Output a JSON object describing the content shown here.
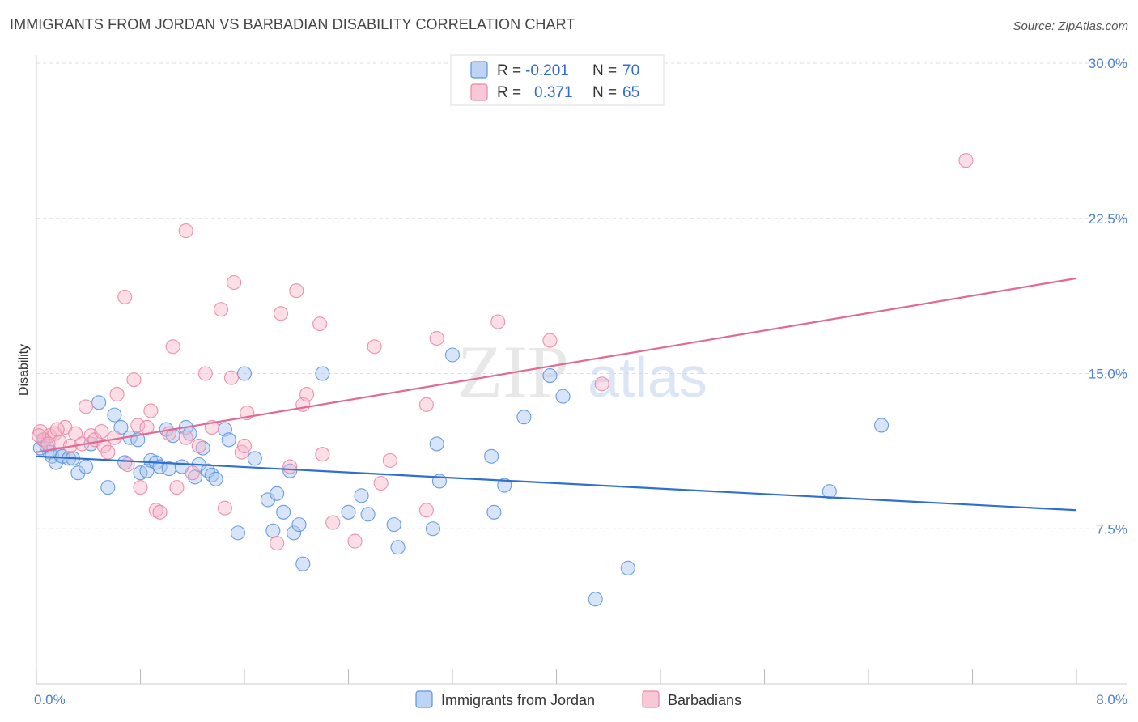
{
  "title": "IMMIGRANTS FROM JORDAN VS BARBADIAN DISABILITY CORRELATION CHART",
  "source": "Source: ZipAtlas.com",
  "watermark": {
    "zip": "ZIP",
    "atlas": "atlas"
  },
  "chart_data": {
    "type": "scatter",
    "ylabel": "Disability",
    "xlim": [
      0.0,
      8.0
    ],
    "ylim": [
      0.0,
      30.0
    ],
    "x_tick_labels": {
      "left": "0.0%",
      "right": "8.0%"
    },
    "y_ticks": [
      {
        "value": 7.5,
        "label": "7.5%"
      },
      {
        "value": 15.0,
        "label": "15.0%"
      },
      {
        "value": 22.5,
        "label": "22.5%"
      },
      {
        "value": 30.0,
        "label": "30.0%"
      }
    ],
    "grid": "horizontal dashed",
    "legend_top": {
      "rows": [
        {
          "r_label": "R =",
          "r_value": "-0.201",
          "n_label": "N =",
          "n_value": "70",
          "color": "#a8c6f0"
        },
        {
          "r_label": "R =",
          "r_value": " 0.371",
          "n_label": "N =",
          "n_value": "65",
          "color": "#f7b6c8"
        }
      ]
    },
    "series": [
      {
        "name": "Immigrants from Jordan",
        "color": "#5b93e0",
        "fill": "#a8c6f0",
        "trend": {
          "x": [
            0.0,
            8.0
          ],
          "y": [
            11.0,
            8.4
          ],
          "color": "#2f6fd0"
        },
        "points": [
          [
            0.05,
            11.8
          ],
          [
            0.08,
            11.5
          ],
          [
            0.1,
            11.2
          ],
          [
            0.12,
            11.0
          ],
          [
            0.15,
            10.7
          ],
          [
            0.18,
            11.1
          ],
          [
            0.2,
            11.0
          ],
          [
            0.25,
            10.9
          ],
          [
            0.28,
            10.9
          ],
          [
            0.32,
            10.2
          ],
          [
            0.38,
            10.5
          ],
          [
            0.42,
            11.6
          ],
          [
            0.48,
            13.6
          ],
          [
            0.55,
            9.5
          ],
          [
            0.6,
            13.0
          ],
          [
            0.65,
            12.4
          ],
          [
            0.68,
            10.7
          ],
          [
            0.72,
            11.9
          ],
          [
            0.78,
            11.8
          ],
          [
            0.8,
            10.2
          ],
          [
            0.85,
            10.3
          ],
          [
            0.88,
            10.8
          ],
          [
            0.92,
            10.7
          ],
          [
            0.95,
            10.5
          ],
          [
            1.0,
            12.3
          ],
          [
            1.02,
            10.4
          ],
          [
            1.05,
            12.0
          ],
          [
            1.12,
            10.5
          ],
          [
            1.15,
            12.4
          ],
          [
            1.18,
            12.1
          ],
          [
            1.22,
            10.0
          ],
          [
            1.25,
            10.6
          ],
          [
            1.28,
            11.4
          ],
          [
            1.32,
            10.3
          ],
          [
            1.35,
            10.1
          ],
          [
            1.38,
            9.9
          ],
          [
            1.45,
            12.3
          ],
          [
            1.48,
            11.8
          ],
          [
            1.55,
            7.3
          ],
          [
            1.6,
            15.0
          ],
          [
            1.68,
            10.9
          ],
          [
            1.78,
            8.9
          ],
          [
            1.82,
            7.4
          ],
          [
            1.85,
            9.2
          ],
          [
            1.9,
            8.3
          ],
          [
            1.95,
            10.3
          ],
          [
            1.98,
            7.3
          ],
          [
            2.02,
            7.7
          ],
          [
            2.05,
            5.8
          ],
          [
            2.2,
            15.0
          ],
          [
            2.4,
            8.3
          ],
          [
            2.5,
            9.1
          ],
          [
            2.55,
            8.2
          ],
          [
            2.75,
            7.7
          ],
          [
            2.78,
            6.6
          ],
          [
            3.05,
            7.5
          ],
          [
            3.08,
            11.6
          ],
          [
            3.1,
            9.8
          ],
          [
            3.2,
            15.9
          ],
          [
            3.5,
            11.0
          ],
          [
            3.52,
            8.3
          ],
          [
            3.6,
            9.6
          ],
          [
            3.75,
            12.9
          ],
          [
            3.95,
            14.9
          ],
          [
            4.05,
            13.9
          ],
          [
            4.3,
            4.1
          ],
          [
            4.55,
            5.6
          ],
          [
            6.1,
            9.3
          ],
          [
            6.5,
            12.5
          ],
          [
            0.03,
            11.4
          ]
        ]
      },
      {
        "name": "Barbadians",
        "color": "#e986a6",
        "fill": "#f7b6c8",
        "trend": {
          "x": [
            0.0,
            8.0
          ],
          "y": [
            11.2,
            19.6
          ],
          "color": "#e06a93"
        },
        "points": [
          [
            0.03,
            12.2
          ],
          [
            0.06,
            11.8
          ],
          [
            0.1,
            12.0
          ],
          [
            0.14,
            12.1
          ],
          [
            0.18,
            11.7
          ],
          [
            0.22,
            12.4
          ],
          [
            0.26,
            11.5
          ],
          [
            0.3,
            12.1
          ],
          [
            0.35,
            11.6
          ],
          [
            0.38,
            13.4
          ],
          [
            0.42,
            12.0
          ],
          [
            0.45,
            11.8
          ],
          [
            0.5,
            12.2
          ],
          [
            0.52,
            11.5
          ],
          [
            0.55,
            11.2
          ],
          [
            0.6,
            11.9
          ],
          [
            0.62,
            14.0
          ],
          [
            0.68,
            18.7
          ],
          [
            0.7,
            10.6
          ],
          [
            0.75,
            14.7
          ],
          [
            0.78,
            12.5
          ],
          [
            0.8,
            9.5
          ],
          [
            0.85,
            12.4
          ],
          [
            0.88,
            13.2
          ],
          [
            0.92,
            8.4
          ],
          [
            0.95,
            8.3
          ],
          [
            1.02,
            12.1
          ],
          [
            1.05,
            16.3
          ],
          [
            1.08,
            9.5
          ],
          [
            1.15,
            11.9
          ],
          [
            1.15,
            21.9
          ],
          [
            1.2,
            10.2
          ],
          [
            1.25,
            11.5
          ],
          [
            1.3,
            15.0
          ],
          [
            1.35,
            12.4
          ],
          [
            1.42,
            18.1
          ],
          [
            1.45,
            8.5
          ],
          [
            1.5,
            14.8
          ],
          [
            1.52,
            19.4
          ],
          [
            1.58,
            11.2
          ],
          [
            1.6,
            11.5
          ],
          [
            1.62,
            13.1
          ],
          [
            1.85,
            6.8
          ],
          [
            1.88,
            17.9
          ],
          [
            1.95,
            10.5
          ],
          [
            2.0,
            19.0
          ],
          [
            2.05,
            13.5
          ],
          [
            2.08,
            14.0
          ],
          [
            2.18,
            17.4
          ],
          [
            2.2,
            11.1
          ],
          [
            2.28,
            7.8
          ],
          [
            2.45,
            6.9
          ],
          [
            2.6,
            16.3
          ],
          [
            2.65,
            9.7
          ],
          [
            2.72,
            10.8
          ],
          [
            3.0,
            13.5
          ],
          [
            3.0,
            8.4
          ],
          [
            3.08,
            16.7
          ],
          [
            3.55,
            17.5
          ],
          [
            3.95,
            16.6
          ],
          [
            4.35,
            14.5
          ],
          [
            7.15,
            25.3
          ],
          [
            0.02,
            12.0
          ],
          [
            0.09,
            11.6
          ],
          [
            0.16,
            12.3
          ]
        ]
      }
    ]
  }
}
